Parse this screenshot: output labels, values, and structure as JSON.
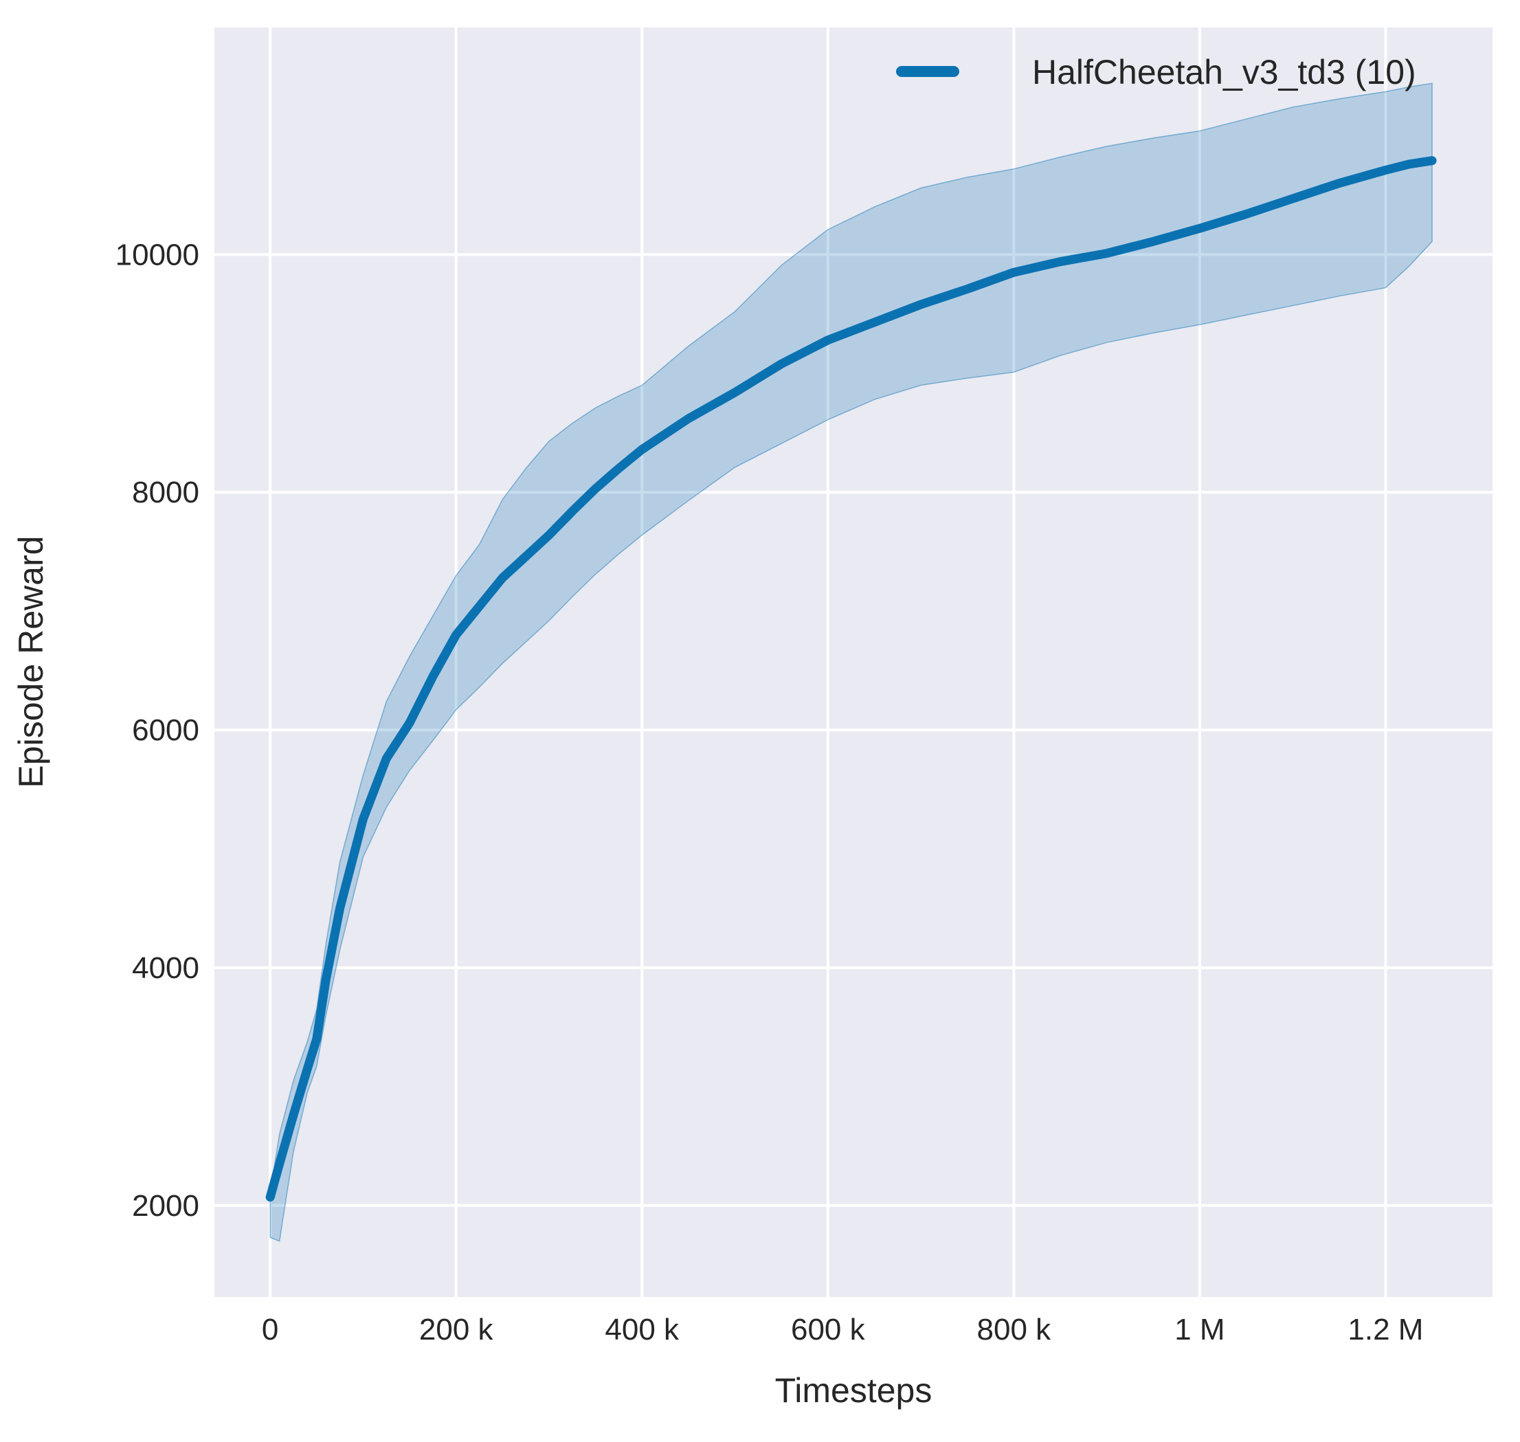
{
  "chart_data": {
    "type": "line",
    "title": "",
    "xlabel": "Timesteps",
    "ylabel": "Episode Reward",
    "grid": true,
    "legend_position": "upper right",
    "plot_bg_color": "#eaeaf2",
    "grid_color": "#ffffff",
    "text_color": "#262626",
    "xlim": [
      -60000,
      1315000
    ],
    "ylim": [
      1230,
      11910
    ],
    "x_ticks": {
      "values": [
        0,
        200000,
        400000,
        600000,
        800000,
        1000000,
        1200000
      ],
      "labels": [
        "0",
        "200 k",
        "400 k",
        "600 k",
        "800 k",
        "1 M",
        "1.2 M"
      ]
    },
    "y_ticks": {
      "values": [
        2000,
        4000,
        6000,
        8000,
        10000
      ],
      "labels": [
        "2000",
        "4000",
        "6000",
        "8000",
        "10000"
      ]
    },
    "series": [
      {
        "name": "HalfCheetah_v3_td3 (10)",
        "color": "#0b72b2",
        "band_color": "#0b72b2",
        "band_opacity": 0.24,
        "x": [
          0,
          10000,
          25000,
          40000,
          50000,
          60000,
          75000,
          100000,
          125000,
          150000,
          175000,
          200000,
          225000,
          250000,
          275000,
          300000,
          325000,
          350000,
          375000,
          400000,
          450000,
          500000,
          550000,
          600000,
          650000,
          700000,
          750000,
          800000,
          850000,
          900000,
          950000,
          1000000,
          1050000,
          1100000,
          1150000,
          1200000,
          1225000,
          1250000
        ],
        "mean": [
          2070,
          2350,
          2760,
          3150,
          3400,
          3900,
          4500,
          5250,
          5760,
          6060,
          6450,
          6800,
          7040,
          7280,
          7460,
          7640,
          7840,
          8030,
          8200,
          8360,
          8620,
          8840,
          9080,
          9280,
          9430,
          9580,
          9710,
          9850,
          9940,
          10010,
          10110,
          10220,
          10340,
          10470,
          10600,
          10710,
          10760,
          10790
        ],
        "lower": [
          1730,
          1700,
          2450,
          2950,
          3170,
          3600,
          4150,
          4930,
          5350,
          5660,
          5910,
          6170,
          6360,
          6560,
          6740,
          6920,
          7120,
          7310,
          7480,
          7640,
          7930,
          8210,
          8410,
          8610,
          8780,
          8900,
          8960,
          9010,
          9150,
          9260,
          9340,
          9410,
          9490,
          9570,
          9650,
          9720,
          9900,
          10110
        ],
        "upper": [
          2110,
          2600,
          3050,
          3380,
          3650,
          4200,
          4890,
          5620,
          6240,
          6620,
          6960,
          7300,
          7560,
          7940,
          8200,
          8430,
          8580,
          8710,
          8810,
          8900,
          9230,
          9520,
          9910,
          10210,
          10400,
          10560,
          10650,
          10720,
          10820,
          10910,
          10980,
          11040,
          11140,
          11240,
          11310,
          11370,
          11410,
          11440
        ]
      }
    ]
  }
}
